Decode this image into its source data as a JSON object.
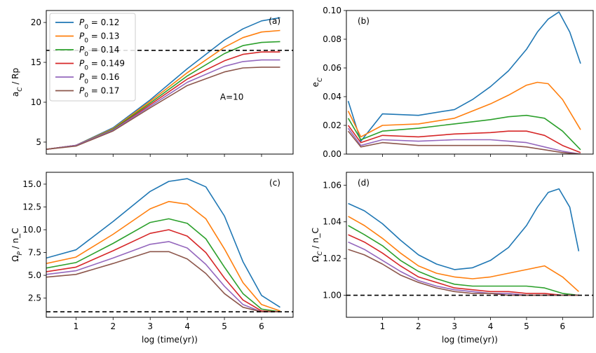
{
  "chart_data": [
    {
      "type": "line",
      "panel_label": "(a)",
      "annotation": "A=10",
      "xlabel": "",
      "ylabel": "a_C / Rp",
      "xlim": [
        0.2,
        6.85
      ],
      "ylim": [
        3.5,
        21.5
      ],
      "xticks": [
        1,
        2,
        3,
        4,
        5,
        6
      ],
      "yticks": [
        5,
        10,
        15,
        20
      ],
      "ytick_labels": [
        "5",
        "10",
        "15",
        "20"
      ],
      "show_xtick_labels": false,
      "hline": 16.5,
      "legend_position": "upper-left",
      "series": [
        {
          "name": "P0 = 0.12",
          "color": "#1f77b4",
          "x": [
            0.2,
            1,
            2,
            3,
            4,
            5,
            5.5,
            6,
            6.5
          ],
          "y": [
            4.1,
            4.6,
            6.8,
            10.3,
            14.2,
            17.8,
            19.2,
            20.2,
            20.6
          ]
        },
        {
          "name": "P0 = 0.13",
          "color": "#ff7f0e",
          "x": [
            0.2,
            1,
            2,
            3,
            4,
            5,
            5.5,
            6,
            6.5
          ],
          "y": [
            4.1,
            4.6,
            6.7,
            10.1,
            13.7,
            16.9,
            18.1,
            18.8,
            19.0
          ]
        },
        {
          "name": "P0 = 0.14",
          "color": "#2ca02c",
          "x": [
            0.2,
            1,
            2,
            3,
            4,
            5,
            5.5,
            6,
            6.5
          ],
          "y": [
            4.1,
            4.6,
            6.6,
            9.9,
            13.3,
            16.1,
            17.1,
            17.5,
            17.6
          ]
        },
        {
          "name": "P0 = 0.149",
          "color": "#d62728",
          "x": [
            0.2,
            1,
            2,
            3,
            4,
            5,
            5.5,
            6,
            6.5
          ],
          "y": [
            4.1,
            4.6,
            6.5,
            9.7,
            12.9,
            15.2,
            16.0,
            16.3,
            16.3
          ]
        },
        {
          "name": "P0 = 0.16",
          "color": "#9467bd",
          "x": [
            0.2,
            1,
            2,
            3,
            4,
            5,
            5.5,
            6,
            6.5
          ],
          "y": [
            4.1,
            4.6,
            6.5,
            9.5,
            12.5,
            14.5,
            15.1,
            15.3,
            15.3
          ]
        },
        {
          "name": "P0 = 0.17",
          "color": "#8c564b",
          "x": [
            0.2,
            1,
            2,
            3,
            4,
            5,
            5.5,
            6,
            6.5
          ],
          "y": [
            4.1,
            4.5,
            6.4,
            9.3,
            12.1,
            13.8,
            14.3,
            14.4,
            14.4
          ]
        }
      ]
    },
    {
      "type": "line",
      "panel_label": "(b)",
      "xlabel": "",
      "ylabel": "e_C",
      "xlim": [
        0.0,
        6.85
      ],
      "ylim": [
        0.0,
        0.1
      ],
      "xticks": [
        1,
        2,
        3,
        4,
        5,
        6
      ],
      "yticks": [
        0.0,
        0.02,
        0.04,
        0.06,
        0.08,
        0.1
      ],
      "ytick_labels": [
        "0.00",
        "0.02",
        "0.04",
        "0.06",
        "0.08",
        "0.10"
      ],
      "show_xtick_labels": false,
      "series": [
        {
          "color": "#1f77b4",
          "x": [
            0.05,
            0.4,
            1,
            2,
            3,
            3.5,
            4,
            4.5,
            5,
            5.3,
            5.6,
            5.9,
            6.2,
            6.5
          ],
          "y": [
            0.037,
            0.009,
            0.028,
            0.027,
            0.031,
            0.038,
            0.047,
            0.058,
            0.073,
            0.085,
            0.094,
            0.099,
            0.085,
            0.063
          ]
        },
        {
          "color": "#ff7f0e",
          "x": [
            0.05,
            0.4,
            1,
            2,
            3,
            4,
            4.5,
            5,
            5.3,
            5.6,
            6,
            6.5
          ],
          "y": [
            0.03,
            0.012,
            0.02,
            0.021,
            0.025,
            0.035,
            0.041,
            0.048,
            0.05,
            0.049,
            0.038,
            0.017
          ]
        },
        {
          "color": "#2ca02c",
          "x": [
            0.05,
            0.4,
            1,
            2,
            3,
            4,
            4.5,
            5,
            5.5,
            6,
            6.5
          ],
          "y": [
            0.025,
            0.01,
            0.016,
            0.018,
            0.021,
            0.024,
            0.026,
            0.027,
            0.025,
            0.016,
            0.003
          ]
        },
        {
          "color": "#d62728",
          "x": [
            0.05,
            0.4,
            1,
            2,
            3,
            4,
            4.5,
            5,
            5.5,
            6,
            6.5
          ],
          "y": [
            0.02,
            0.008,
            0.013,
            0.012,
            0.014,
            0.015,
            0.016,
            0.016,
            0.013,
            0.006,
            0.001
          ]
        },
        {
          "color": "#9467bd",
          "x": [
            0.05,
            0.4,
            1,
            2,
            3,
            4,
            4.5,
            5,
            5.5,
            6,
            6.5
          ],
          "y": [
            0.018,
            0.006,
            0.01,
            0.009,
            0.01,
            0.01,
            0.009,
            0.008,
            0.005,
            0.002,
            0.0
          ]
        },
        {
          "color": "#8c564b",
          "x": [
            0.05,
            0.4,
            1,
            2,
            3,
            4,
            4.5,
            5,
            5.5,
            6,
            6.5
          ],
          "y": [
            0.016,
            0.005,
            0.008,
            0.006,
            0.006,
            0.006,
            0.006,
            0.005,
            0.003,
            0.001,
            0.0
          ]
        }
      ]
    },
    {
      "type": "line",
      "panel_label": "(c)",
      "xlabel": "log (time(yr))",
      "ylabel": "Ω_P / n_C",
      "xlim": [
        0.2,
        6.85
      ],
      "ylim": [
        0.4,
        16.3
      ],
      "xticks": [
        1,
        2,
        3,
        4,
        5,
        6
      ],
      "yticks": [
        2.5,
        5.0,
        7.5,
        10.0,
        12.5,
        15.0
      ],
      "ytick_labels": [
        "2.5",
        "5.0",
        "7.5",
        "10.0",
        "12.5",
        "15.0"
      ],
      "show_xtick_labels": true,
      "hline": 1.0,
      "series": [
        {
          "color": "#1f77b4",
          "x": [
            0.2,
            1,
            2,
            3,
            3.5,
            4,
            4.5,
            5,
            5.5,
            6,
            6.5
          ],
          "y": [
            6.9,
            7.8,
            10.9,
            14.2,
            15.3,
            15.6,
            14.7,
            11.5,
            6.5,
            2.8,
            1.5
          ]
        },
        {
          "color": "#ff7f0e",
          "x": [
            0.2,
            1,
            2,
            3,
            3.5,
            4,
            4.5,
            5,
            5.5,
            6,
            6.5
          ],
          "y": [
            6.3,
            7.0,
            9.5,
            12.3,
            13.1,
            12.8,
            11.2,
            7.9,
            4.2,
            1.8,
            1.1
          ]
        },
        {
          "color": "#2ca02c",
          "x": [
            0.2,
            1,
            2,
            3,
            3.5,
            4,
            4.5,
            5,
            5.5,
            6,
            6.5
          ],
          "y": [
            5.8,
            6.4,
            8.5,
            10.8,
            11.2,
            10.7,
            9.0,
            5.9,
            3.0,
            1.3,
            1.0
          ]
        },
        {
          "color": "#d62728",
          "x": [
            0.2,
            1,
            2,
            3,
            3.5,
            4,
            4.5,
            5,
            5.5,
            6,
            6.5
          ],
          "y": [
            5.4,
            5.9,
            7.7,
            9.6,
            10.0,
            9.3,
            7.5,
            4.7,
            2.3,
            1.1,
            1.0
          ]
        },
        {
          "color": "#9467bd",
          "x": [
            0.2,
            1,
            2,
            3,
            3.5,
            4,
            4.5,
            5,
            5.5,
            6,
            6.5
          ],
          "y": [
            5.1,
            5.5,
            6.9,
            8.4,
            8.7,
            8.0,
            6.2,
            3.8,
            1.8,
            1.0,
            1.0
          ]
        },
        {
          "color": "#8c564b",
          "x": [
            0.2,
            1,
            2,
            3,
            3.5,
            4,
            4.5,
            5,
            5.5,
            6,
            6.5
          ],
          "y": [
            4.8,
            5.1,
            6.3,
            7.6,
            7.6,
            6.8,
            5.2,
            3.0,
            1.5,
            1.0,
            1.0
          ]
        }
      ]
    },
    {
      "type": "line",
      "panel_label": "(d)",
      "xlabel": "log (time(yr))",
      "ylabel": "Ω_C / n_C",
      "xlim": [
        0.0,
        6.85
      ],
      "ylim": [
        0.988,
        1.067
      ],
      "xticks": [
        1,
        2,
        3,
        4,
        5,
        6
      ],
      "yticks": [
        1.0,
        1.02,
        1.04,
        1.06
      ],
      "ytick_labels": [
        "1.00",
        "1.02",
        "1.04",
        "1.06"
      ],
      "show_xtick_labels": true,
      "hline": 1.0,
      "series": [
        {
          "color": "#1f77b4",
          "x": [
            0.05,
            0.5,
            1,
            1.5,
            2,
            2.5,
            3,
            3.5,
            4,
            4.5,
            5,
            5.3,
            5.6,
            5.9,
            6.2,
            6.45
          ],
          "y": [
            1.05,
            1.046,
            1.039,
            1.03,
            1.022,
            1.017,
            1.014,
            1.015,
            1.019,
            1.026,
            1.038,
            1.048,
            1.056,
            1.058,
            1.048,
            1.024
          ]
        },
        {
          "color": "#ff7f0e",
          "x": [
            0.05,
            0.5,
            1,
            1.5,
            2,
            2.5,
            3,
            3.5,
            4,
            4.5,
            5,
            5.5,
            6,
            6.45
          ],
          "y": [
            1.043,
            1.038,
            1.031,
            1.023,
            1.016,
            1.012,
            1.01,
            1.009,
            1.01,
            1.012,
            1.014,
            1.016,
            1.01,
            1.002
          ]
        },
        {
          "color": "#2ca02c",
          "x": [
            0.05,
            0.5,
            1,
            1.5,
            2,
            2.5,
            3,
            3.5,
            4,
            4.5,
            5,
            5.5,
            6,
            6.45
          ],
          "y": [
            1.038,
            1.033,
            1.027,
            1.019,
            1.013,
            1.009,
            1.006,
            1.005,
            1.005,
            1.005,
            1.005,
            1.004,
            1.001,
            1.0
          ]
        },
        {
          "color": "#d62728",
          "x": [
            0.05,
            0.5,
            1,
            1.5,
            2,
            2.5,
            3,
            3.5,
            4,
            4.5,
            5,
            5.5,
            6,
            6.45
          ],
          "y": [
            1.033,
            1.029,
            1.023,
            1.016,
            1.01,
            1.007,
            1.004,
            1.003,
            1.002,
            1.002,
            1.001,
            1.001,
            1.0,
            1.0
          ]
        },
        {
          "color": "#9467bd",
          "x": [
            0.05,
            0.5,
            1,
            1.5,
            2,
            2.5,
            3,
            3.5,
            4,
            4.5,
            5,
            5.5,
            6,
            6.45
          ],
          "y": [
            1.029,
            1.025,
            1.019,
            1.013,
            1.008,
            1.005,
            1.003,
            1.002,
            1.001,
            1.001,
            1.0,
            1.0,
            1.0,
            1.0
          ]
        },
        {
          "color": "#8c564b",
          "x": [
            0.05,
            0.5,
            1,
            1.5,
            2,
            2.5,
            3,
            3.5,
            4,
            4.5,
            5,
            5.5,
            6,
            6.45
          ],
          "y": [
            1.025,
            1.022,
            1.017,
            1.011,
            1.007,
            1.004,
            1.002,
            1.001,
            1.001,
            1.0,
            1.0,
            1.0,
            1.0,
            1.0
          ]
        }
      ]
    }
  ]
}
